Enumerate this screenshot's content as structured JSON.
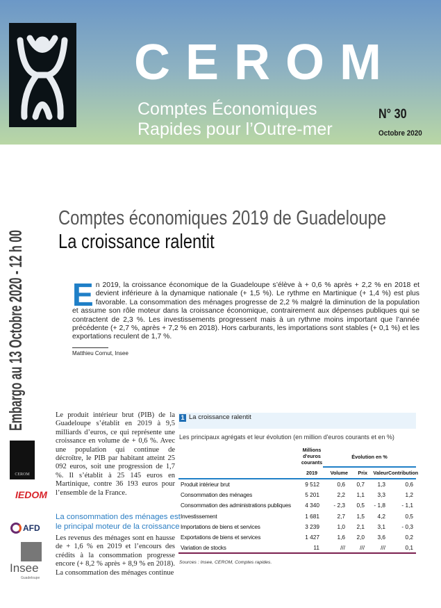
{
  "header": {
    "brand": "CEROM",
    "subtitle_line1": "Comptes Économiques",
    "subtitle_line2": "Rapides pour l’Outre-mer",
    "issue": "N° 30",
    "date": "Octobre 2020"
  },
  "embargo": "Embargo au 13 Octobre 2020 - 12 h 00",
  "title": {
    "line1": "Comptes économiques 2019 de Guadeloupe",
    "line2": "La croissance ralentit"
  },
  "abstract": {
    "dropcap": "E",
    "text": "n 2019, la croissance économique de la Guadeloupe s’élève à + 0,6 % après + 2,2 % en 2018 et devient inférieure à la dynamique nationale (+ 1,5 %). Le rythme en Martinique (+ 1,4 %) est plus favorable. La consommation des ménages progresse de 2,2 % malgré la diminution de la population et assume son rôle moteur dans la croissance économique, contrairement aux dépenses publiques qui se contractent de 2,3 %. Les investissements progressent mais à un rythme moins important que l’année précédente (+ 2,7 %, après + 7,2 % en 2018). Hors carburants, les importations sont stables (+ 0,1 %) et les exportations reculent de 1,7 %.",
    "author": "Matthieu Cornut, Insee"
  },
  "body": {
    "para1": "Le produit intérieur brut (PIB) de la Guadeloupe s’établit en 2019 à 9,5 milliards d’euros, ce qui représente une croissance en volume de + 0,6 %. Avec une population qui continue de décroître, le PIB par habitant atteint 25 092 euros, soit une progression de 1,7 %. Il s’établit à 25 145 euros en Martinique, contre 36 193 euros pour l’ensemble de la France.",
    "heading": "La consommation des ménages est le principal moteur de la croissance",
    "para2": "Les revenus des ménages sont en hausse de + 1,6 % en 2019 et l’encours des crédits à la consommation progresse encore (+ 8,2 % après + 8,9 % en 2018). La consommation des ménages continue"
  },
  "logos": {
    "cerom": "CEROM",
    "iedom": "IEDOM",
    "afd": "AFD",
    "insee": "Insee",
    "insee_sub": "Guadeloupe"
  },
  "table": {
    "number": "1",
    "title": "La croissance ralentit",
    "subtitle": "Les principaux agrégats et leur évolution (en million d'euros courants et en %)",
    "group1": "Millions d'euros courants",
    "group2": "Évolution en %",
    "columns": [
      "2019",
      "Volume",
      "Prix",
      "Valeur",
      "Contribution"
    ],
    "rows": [
      [
        "Produit intérieur brut",
        "9 512",
        "0,6",
        "0,7",
        "1,3",
        "0,6"
      ],
      [
        "Consommation des ménages",
        "5 201",
        "2,2",
        "1,1",
        "3,3",
        "1,2"
      ],
      [
        "Consommation des administrations publiques",
        "4 340",
        "- 2,3",
        "0,5",
        "- 1,8",
        "- 1,1"
      ],
      [
        "Investissement",
        "1 681",
        "2,7",
        "1,5",
        "4,2",
        "0,5"
      ],
      [
        "Importations de biens et services",
        "3 239",
        "1,0",
        "2,1",
        "3,1",
        "- 0,3"
      ],
      [
        "Exportations de biens et services",
        "1 427",
        "1,6",
        "2,0",
        "3,6",
        "0,2"
      ],
      [
        "Variation de stocks",
        "11",
        "///",
        "///",
        "///",
        "0,1"
      ]
    ],
    "source": "Sources : Insee, CEROM, Comptes rapides."
  },
  "colors": {
    "accent": "#1f7fc7",
    "heading": "#2a7dc3",
    "table_line": "#1f7fc7",
    "table_bottom": "#7a1f4f"
  }
}
